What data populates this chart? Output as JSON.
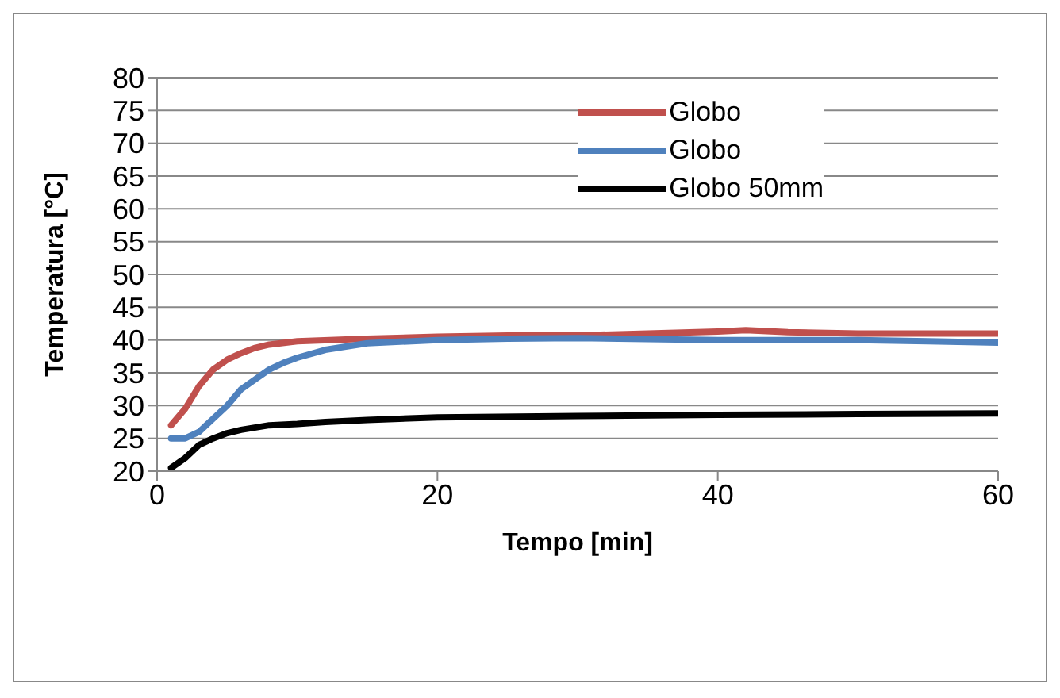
{
  "chart_data": {
    "type": "line",
    "xlabel": "Tempo [min]",
    "ylabel": "Temperatura [°C]",
    "xlim": [
      0,
      60
    ],
    "xticks": [
      0,
      20,
      40,
      60
    ],
    "ylim": [
      20,
      80
    ],
    "yticks": [
      20,
      25,
      30,
      35,
      40,
      45,
      50,
      55,
      60,
      65,
      70,
      75,
      80
    ],
    "grid": "y",
    "legend": "top right",
    "marker": "none",
    "line_style": "solid",
    "series": [
      {
        "name": "Globo",
        "color": "#c0504d",
        "x": [
          1,
          2,
          3,
          4,
          5,
          6,
          7,
          8,
          10,
          15,
          20,
          25,
          30,
          35,
          40,
          42,
          45,
          50,
          55,
          60
        ],
        "values": [
          27,
          29.5,
          33,
          35.5,
          37,
          38,
          38.8,
          39.3,
          39.8,
          40.2,
          40.5,
          40.7,
          40.7,
          41,
          41.3,
          41.5,
          41.2,
          41,
          41,
          41
        ]
      },
      {
        "name": "Globo",
        "color": "#4f81bd",
        "x": [
          1,
          2,
          3,
          4,
          5,
          6,
          7,
          8,
          9,
          10,
          12,
          15,
          20,
          25,
          30,
          40,
          50,
          55,
          60
        ],
        "values": [
          25,
          25,
          26,
          28,
          30,
          32.5,
          34,
          35.5,
          36.5,
          37.3,
          38.5,
          39.5,
          40,
          40.2,
          40.3,
          40,
          40,
          39.8,
          39.6
        ]
      },
      {
        "name": "Globo 50mm",
        "color": "#000000",
        "x": [
          1,
          2,
          3,
          4,
          5,
          6,
          8,
          10,
          12,
          15,
          20,
          30,
          40,
          50,
          60
        ],
        "values": [
          20.5,
          22,
          24,
          25,
          25.8,
          26.3,
          27,
          27.2,
          27.5,
          27.8,
          28.2,
          28.4,
          28.6,
          28.7,
          28.8
        ]
      }
    ]
  }
}
